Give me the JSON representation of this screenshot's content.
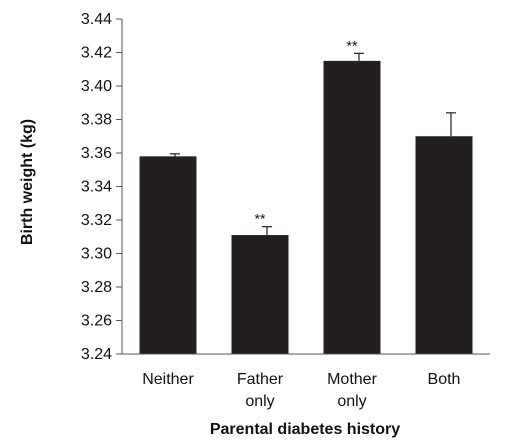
{
  "chart_data": {
    "type": "bar",
    "title": "",
    "xlabel": "Parental diabetes history",
    "ylabel": "Birth weight (kg)",
    "ylim": [
      3.24,
      3.44
    ],
    "yticks": [
      "3.24",
      "3.26",
      "3.28",
      "3.30",
      "3.32",
      "3.34",
      "3.36",
      "3.38",
      "3.40",
      "3.42",
      "3.44"
    ],
    "categories": [
      [
        "Neither"
      ],
      [
        "Father",
        "only"
      ],
      [
        "Mother",
        "only"
      ],
      [
        "Both"
      ]
    ],
    "values": [
      3.358,
      3.311,
      3.415,
      3.37
    ],
    "error_upper": [
      0.0015,
      0.005,
      0.0045,
      0.014
    ],
    "annotations": [
      "",
      "**",
      "**",
      ""
    ],
    "bar_color": "#231f20",
    "grid": false,
    "legend": "none"
  }
}
